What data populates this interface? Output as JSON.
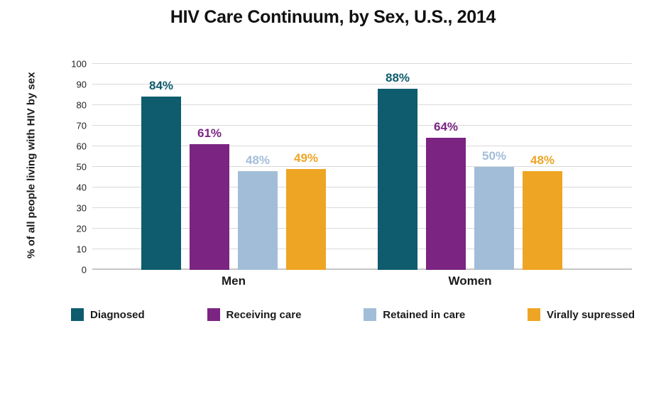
{
  "title": "HIV Care Continuum, by Sex, U.S., 2014",
  "chart_data": {
    "type": "bar",
    "title": "HIV Care Continuum, by Sex, U.S., 2014",
    "xlabel": "",
    "ylabel": "% of all people living with HIV by sex",
    "ylim": [
      0,
      100
    ],
    "ytick_step": 10,
    "yticks": [
      0,
      10,
      20,
      30,
      40,
      50,
      60,
      70,
      80,
      90,
      100
    ],
    "grid": true,
    "legend_position": "bottom",
    "categories": [
      "Men",
      "Women"
    ],
    "series": [
      {
        "name": "Diagnosed",
        "color": "#0E5C6D",
        "values": [
          84,
          88
        ]
      },
      {
        "name": "Receiving care",
        "color": "#7B2482",
        "values": [
          61,
          64
        ]
      },
      {
        "name": "Retained in care",
        "color": "#A2BDD8",
        "values": [
          48,
          50
        ]
      },
      {
        "name": "Virally supressed",
        "color": "#EEA524",
        "values": [
          49,
          48
        ]
      }
    ],
    "value_label_suffix": "%"
  },
  "colors": {
    "gridline": "#d9d9d9",
    "baseline": "#c6c6c6",
    "title_text": "#111111",
    "axis_text": "#222222"
  }
}
